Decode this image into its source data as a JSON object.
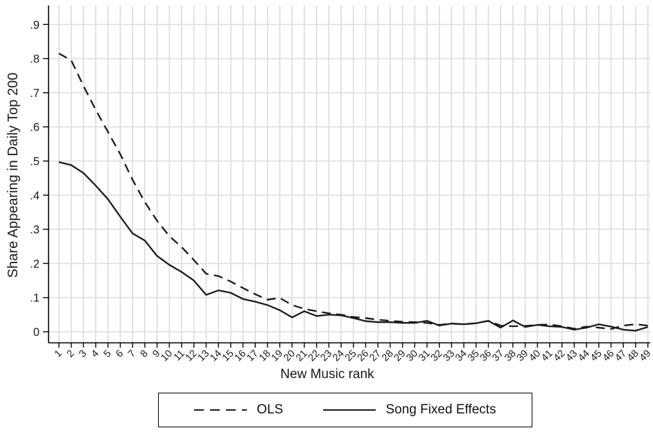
{
  "figure": {
    "xlabel": "New Music rank",
    "ylabel": "Share Appearing in Daily Top 200"
  },
  "legend": {
    "items": [
      {
        "label": "OLS",
        "style": "dashed"
      },
      {
        "label": "Song Fixed Effects",
        "style": "solid"
      }
    ]
  },
  "chart_data": {
    "type": "line",
    "title": "",
    "xlabel": "New Music rank",
    "ylabel": "Share Appearing in Daily Top 200",
    "x": [
      1,
      2,
      3,
      4,
      5,
      6,
      7,
      8,
      9,
      10,
      11,
      12,
      13,
      14,
      15,
      16,
      17,
      18,
      19,
      20,
      21,
      22,
      23,
      24,
      25,
      26,
      27,
      28,
      29,
      30,
      31,
      32,
      33,
      34,
      35,
      36,
      37,
      38,
      39,
      40,
      41,
      42,
      43,
      44,
      45,
      46,
      47,
      48,
      49
    ],
    "x_tick_labels": [
      "1",
      "2",
      "3",
      "4",
      "5",
      "6",
      "7",
      "8",
      "9",
      "10",
      "11",
      "12",
      "13",
      "14",
      "15",
      "16",
      "17",
      "18",
      "19",
      "20",
      "21",
      "22",
      "23",
      "24",
      "25",
      "26",
      "27",
      "28",
      "29",
      "30",
      "31",
      "32",
      "33",
      "34",
      "35",
      "36",
      "37",
      "38",
      "39",
      "40",
      "41",
      "42",
      "43",
      "44",
      "45",
      "46",
      "47",
      "48",
      "49"
    ],
    "y_ticks": [
      0,
      0.1,
      0.2,
      0.3,
      0.4,
      0.5,
      0.6,
      0.7,
      0.8,
      0.9
    ],
    "y_tick_labels": [
      "0",
      ".1",
      ".2",
      ".3",
      ".4",
      ".5",
      ".6",
      ".7",
      ".8",
      ".9"
    ],
    "xlim": [
      1,
      49
    ],
    "ylim": [
      0,
      0.93
    ],
    "grid": "both",
    "grid_color": "#dedede",
    "axis_color": "#000000",
    "line_color": "#1a1a1a",
    "legend_position": "bottom-center-boxed",
    "series": [
      {
        "name": "OLS",
        "style": "dashed",
        "values": [
          0.815,
          0.795,
          0.72,
          0.65,
          0.585,
          0.52,
          0.445,
          0.38,
          0.325,
          0.28,
          0.248,
          0.21,
          0.17,
          0.163,
          0.147,
          0.128,
          0.11,
          0.094,
          0.099,
          0.078,
          0.067,
          0.06,
          0.054,
          0.05,
          0.043,
          0.04,
          0.035,
          0.032,
          0.029,
          0.028,
          0.026,
          0.02,
          0.024,
          0.022,
          0.025,
          0.032,
          0.018,
          0.016,
          0.017,
          0.02,
          0.021,
          0.016,
          0.009,
          0.015,
          0.012,
          0.008,
          0.018,
          0.022,
          0.018
        ]
      },
      {
        "name": "Song Fixed Effects",
        "style": "solid",
        "values": [
          0.497,
          0.488,
          0.465,
          0.428,
          0.388,
          0.337,
          0.288,
          0.267,
          0.222,
          0.196,
          0.175,
          0.15,
          0.108,
          0.121,
          0.114,
          0.096,
          0.088,
          0.078,
          0.063,
          0.042,
          0.06,
          0.046,
          0.05,
          0.048,
          0.04,
          0.031,
          0.028,
          0.028,
          0.026,
          0.026,
          0.032,
          0.018,
          0.024,
          0.022,
          0.025,
          0.032,
          0.012,
          0.033,
          0.014,
          0.02,
          0.016,
          0.014,
          0.006,
          0.012,
          0.022,
          0.015,
          0.006,
          0.003,
          0.014
        ]
      }
    ]
  }
}
